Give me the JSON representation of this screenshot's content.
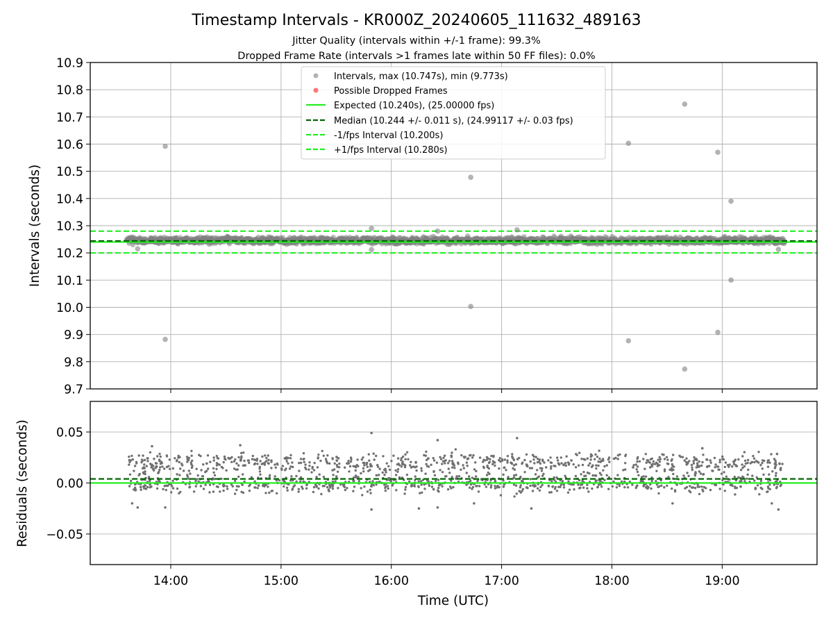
{
  "chart_data": {
    "title": "Timestamp Intervals - KR000Z_20240605_111632_489163",
    "subtitle_lines": [
      "Jitter Quality (intervals within +/-1 frame): 99.3%",
      "Dropped Frame Rate (intervals >1 frames late within 50 FF files): 0.0%"
    ],
    "xlabel": "Time (UTC)",
    "x_tick_labels": [
      "14:00",
      "15:00",
      "16:00",
      "17:00",
      "18:00",
      "19:00"
    ],
    "x_tick_hours": [
      14,
      15,
      16,
      17,
      18,
      19
    ],
    "xlim_hours": [
      13.27,
      19.86
    ],
    "data_span_hours": [
      13.6,
      19.57
    ],
    "panels": [
      {
        "type": "scatter",
        "ylabel": "Intervals (seconds)",
        "ylim": [
          9.7,
          10.9
        ],
        "y_ticks": [
          9.7,
          9.8,
          9.9,
          10.0,
          10.1,
          10.2,
          10.3,
          10.4,
          10.5,
          10.6,
          10.7,
          10.8,
          10.9
        ],
        "y_tick_labels": [
          "9.7",
          "9.8",
          "9.9",
          "10.0",
          "10.1",
          "10.2",
          "10.3",
          "10.4",
          "10.5",
          "10.6",
          "10.7",
          "10.8",
          "10.9"
        ],
        "grid": true,
        "legend_position": "top-center",
        "series": [
          {
            "name": "Intervals, max (10.747s), min (9.773s)",
            "kind": "scatter",
            "color": "#808080",
            "outliers": [
              {
                "x_hours": 13.95,
                "y": 10.592
              },
              {
                "x_hours": 13.95,
                "y": 9.882
              },
              {
                "x_hours": 16.72,
                "y": 10.478
              },
              {
                "x_hours": 16.72,
                "y": 10.003
              },
              {
                "x_hours": 18.15,
                "y": 10.603
              },
              {
                "x_hours": 18.15,
                "y": 9.877
              },
              {
                "x_hours": 18.66,
                "y": 10.747
              },
              {
                "x_hours": 18.66,
                "y": 9.773
              },
              {
                "x_hours": 18.96,
                "y": 10.57
              },
              {
                "x_hours": 18.96,
                "y": 9.908
              },
              {
                "x_hours": 19.08,
                "y": 10.39
              },
              {
                "x_hours": 19.08,
                "y": 10.1
              },
              {
                "x_hours": 15.82,
                "y": 10.29
              },
              {
                "x_hours": 17.14,
                "y": 10.285
              },
              {
                "x_hours": 16.42,
                "y": 10.28
              },
              {
                "x_hours": 15.82,
                "y": 10.212
              },
              {
                "x_hours": 13.7,
                "y": 10.215
              },
              {
                "x_hours": 19.51,
                "y": 10.213
              }
            ],
            "bulk_range": [
              10.22,
              10.265
            ]
          },
          {
            "name": "Possible Dropped Frames",
            "kind": "scatter",
            "color": "#ff6666",
            "points": []
          },
          {
            "name": "Expected (10.240s), (25.00000 fps)",
            "kind": "hline",
            "y": 10.24,
            "color": "#22ee22",
            "style": "solid"
          },
          {
            "name": "Median (10.244 +/- 0.011 s), (24.99117 +/- 0.03 fps)",
            "kind": "hline",
            "y": 10.244,
            "color": "#006400",
            "style": "dashed"
          },
          {
            "name": "-1/fps Interval (10.200s)",
            "kind": "hline",
            "y": 10.2,
            "color": "#22ee22",
            "style": "dashed"
          },
          {
            "name": "+1/fps Interval (10.280s)",
            "kind": "hline",
            "y": 10.28,
            "color": "#22ee22",
            "style": "dashed"
          }
        ]
      },
      {
        "type": "scatter",
        "ylabel": "Residuals (seconds)",
        "ylim": [
          -0.08,
          0.08
        ],
        "y_ticks": [
          -0.05,
          0.0,
          0.05
        ],
        "y_tick_labels": [
          "−0.05",
          "0.00",
          "0.05"
        ],
        "grid": true,
        "residual_bands": [
          0.0,
          0.02
        ],
        "residual_outliers": [
          {
            "x_hours": 15.82,
            "y": 0.049
          },
          {
            "x_hours": 16.42,
            "y": 0.042
          },
          {
            "x_hours": 17.14,
            "y": 0.044
          },
          {
            "x_hours": 14.63,
            "y": 0.037
          },
          {
            "x_hours": 13.83,
            "y": 0.036
          },
          {
            "x_hours": 18.82,
            "y": 0.034
          },
          {
            "x_hours": 15.82,
            "y": -0.026
          },
          {
            "x_hours": 19.51,
            "y": -0.026
          },
          {
            "x_hours": 13.95,
            "y": -0.024
          },
          {
            "x_hours": 17.27,
            "y": -0.025
          },
          {
            "x_hours": 16.25,
            "y": -0.025
          },
          {
            "x_hours": 16.42,
            "y": -0.024
          },
          {
            "x_hours": 13.7,
            "y": -0.024
          },
          {
            "x_hours": 13.65,
            "y": -0.02
          },
          {
            "x_hours": 19.45,
            "y": -0.02
          },
          {
            "x_hours": 16.75,
            "y": -0.02
          },
          {
            "x_hours": 18.55,
            "y": -0.02
          }
        ],
        "hlines": [
          {
            "y": 0.0,
            "color": "#22ee22",
            "style": "solid"
          },
          {
            "y": 0.004,
            "color": "#006400",
            "style": "dashed"
          }
        ]
      }
    ]
  }
}
